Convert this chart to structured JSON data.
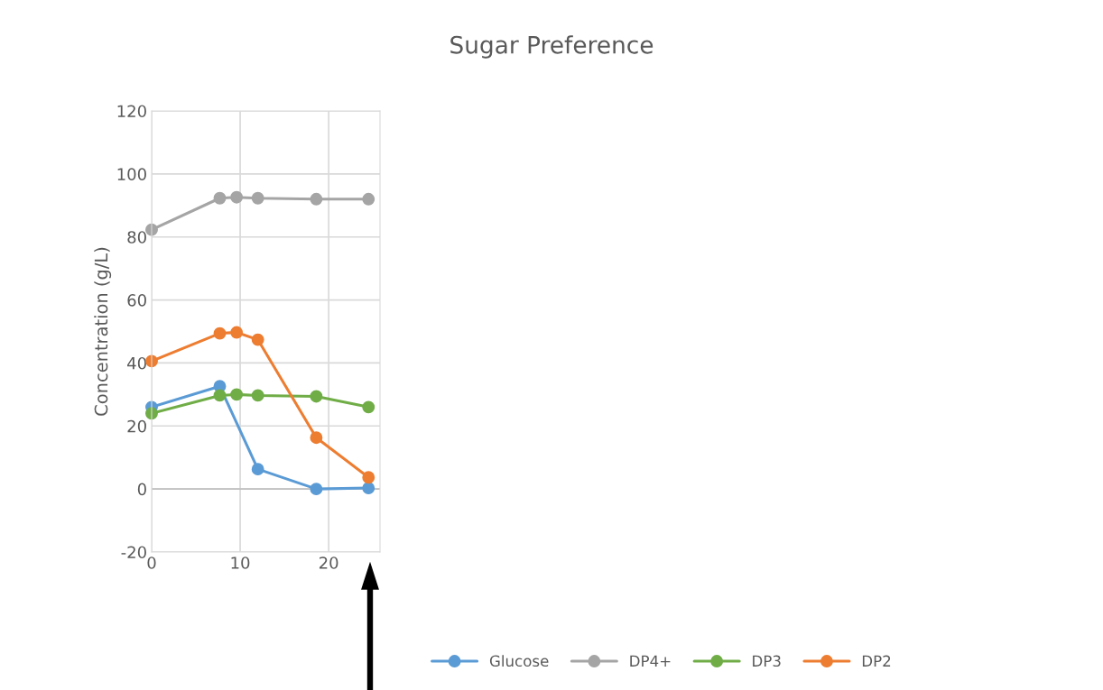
{
  "chart_data": {
    "type": "line",
    "title": "Sugar Preference",
    "ylabel": "Concentration (g/L)",
    "x": [
      0,
      7.7,
      9.6,
      12,
      18.6,
      24.5
    ],
    "series": [
      {
        "name": "Glucose",
        "color": "#5b9bd5",
        "values": [
          26,
          32.6,
          null,
          6.3,
          0,
          0.3
        ]
      },
      {
        "name": "DP4+",
        "color": "#a5a5a5",
        "values": [
          82.3,
          92.3,
          92.6,
          92.3,
          92,
          92
        ]
      },
      {
        "name": "DP3",
        "color": "#70ad47",
        "values": [
          24,
          29.7,
          30,
          29.7,
          29.4,
          26
        ]
      },
      {
        "name": "DP2",
        "color": "#ed7d31",
        "values": [
          40.6,
          49.4,
          49.7,
          47.4,
          16.3,
          3.7
        ]
      }
    ],
    "xlim": [
      0,
      25.8
    ],
    "xticks": [
      0,
      10,
      20
    ],
    "ylim": [
      -20,
      120
    ],
    "yticks": [
      -20,
      0,
      20,
      40,
      60,
      80,
      100,
      120
    ],
    "grid": true,
    "legend": "bottom",
    "marker": "circle",
    "line_style": "solid"
  }
}
